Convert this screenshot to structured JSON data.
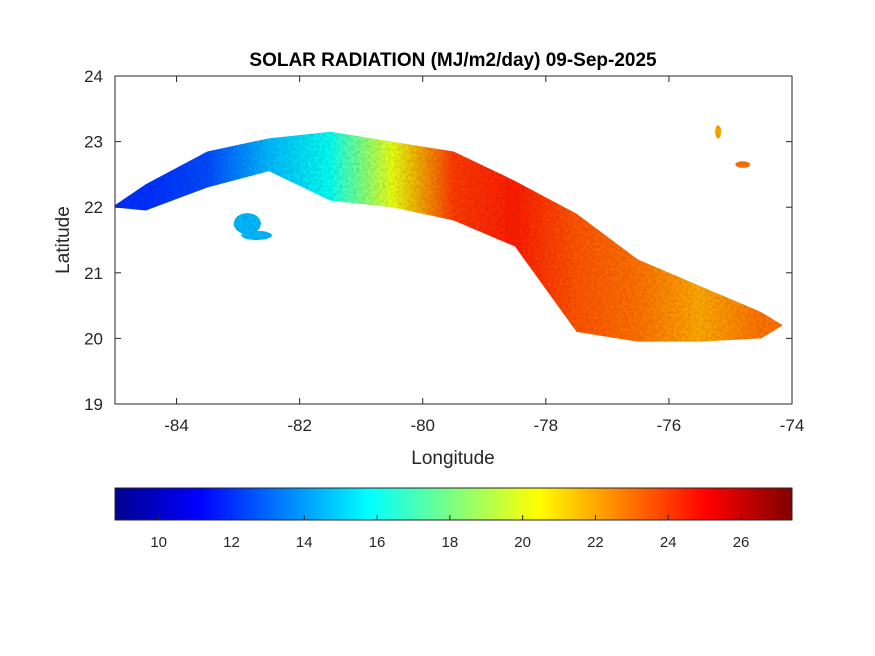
{
  "chart_data": {
    "type": "heatmap",
    "title": "SOLAR RADIATION (MJ/m2/day) 09-Sep-2025",
    "xlabel": "Longitude",
    "ylabel": "Latitude",
    "xlim": [
      -85,
      -74
    ],
    "ylim": [
      19,
      24
    ],
    "xticks": [
      -84,
      -82,
      -80,
      -78,
      -76,
      -74
    ],
    "yticks": [
      19,
      20,
      21,
      22,
      23,
      24
    ],
    "grid": false,
    "colorbar": {
      "orientation": "horizontal",
      "location": "below",
      "colormap": "jet",
      "range": [
        8.8,
        27.4
      ],
      "ticks": [
        10,
        12,
        14,
        16,
        18,
        20,
        22,
        24,
        26
      ]
    },
    "region_summary": [
      {
        "lon": -84.5,
        "lat_min": 21.95,
        "lat_max": 22.35,
        "value": 12
      },
      {
        "lon": -83.5,
        "lat_min": 22.3,
        "lat_max": 22.85,
        "value": 12.5
      },
      {
        "lon": -82.5,
        "lat_min": 22.55,
        "lat_max": 23.05,
        "value": 14.5
      },
      {
        "lon": -81.5,
        "lat_min": 22.1,
        "lat_max": 23.15,
        "value": 16
      },
      {
        "lon": -80.5,
        "lat_min": 22.0,
        "lat_max": 23.0,
        "value": 20
      },
      {
        "lon": -79.5,
        "lat_min": 21.8,
        "lat_max": 22.85,
        "value": 24
      },
      {
        "lon": -78.5,
        "lat_min": 21.4,
        "lat_max": 22.4,
        "value": 24.5
      },
      {
        "lon": -77.5,
        "lat_min": 20.1,
        "lat_max": 21.9,
        "value": 23.5
      },
      {
        "lon": -76.5,
        "lat_min": 19.95,
        "lat_max": 21.2,
        "value": 23
      },
      {
        "lon": -75.5,
        "lat_min": 19.95,
        "lat_max": 20.8,
        "value": 22
      },
      {
        "lon": -74.5,
        "lat_min": 20.0,
        "lat_max": 20.4,
        "value": 23
      }
    ]
  },
  "colors": {
    "axis": "#262626",
    "background": "#ffffff",
    "no_data": "#ffffff"
  }
}
